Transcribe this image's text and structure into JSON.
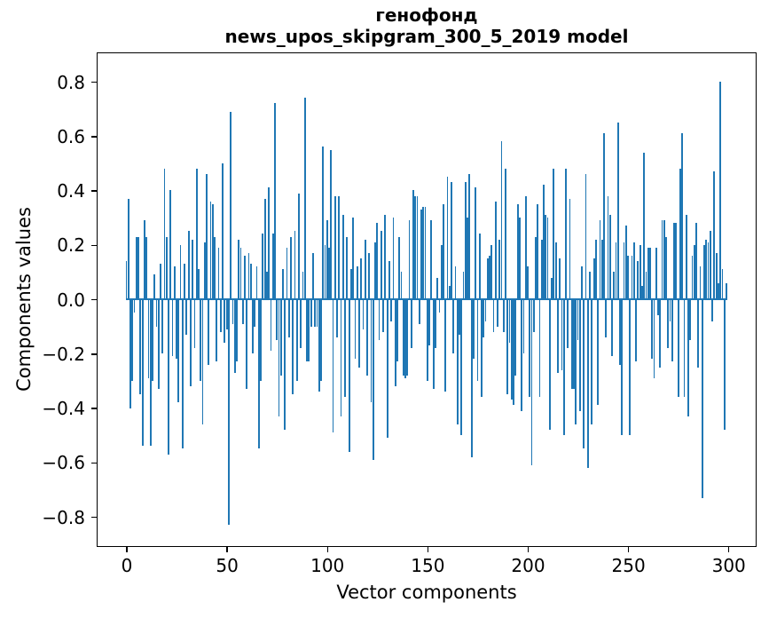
{
  "title": {
    "line1": "генофонд",
    "line2": "news_upos_skipgram_300_5_2019 model"
  },
  "axes": {
    "xlabel": "Vector components",
    "ylabel": "Components values"
  },
  "chart_data": {
    "type": "bar",
    "title": "генофонд\nnews_upos_skipgram_300_5_2019 model",
    "xlabel": "Vector components",
    "ylabel": "Components values",
    "bar_color": "#1f77b4",
    "grid": false,
    "legend": null,
    "n_components": 300,
    "x_ticks": [
      0,
      50,
      100,
      150,
      200,
      250,
      300
    ],
    "y_ticks": [
      0.8,
      0.6,
      0.4,
      0.2,
      0.0,
      -0.2,
      -0.4,
      -0.6,
      -0.8
    ],
    "xlim": [
      -14.6,
      313.4
    ],
    "ylim": [
      -0.906,
      0.906
    ],
    "values": [
      0.14,
      0.37,
      -0.4,
      -0.3,
      -0.05,
      0.23,
      0.23,
      -0.35,
      -0.54,
      0.29,
      0.23,
      -0.29,
      -0.54,
      -0.3,
      0.09,
      -0.1,
      -0.33,
      0.13,
      -0.2,
      0.48,
      0.23,
      -0.57,
      0.4,
      -0.21,
      0.12,
      -0.22,
      -0.38,
      0.2,
      -0.55,
      0.13,
      -0.13,
      0.25,
      -0.32,
      0.22,
      -0.18,
      0.48,
      0.11,
      -0.3,
      -0.46,
      0.21,
      0.46,
      -0.24,
      0.36,
      0.35,
      0.23,
      -0.23,
      0.19,
      -0.12,
      0.5,
      -0.16,
      -0.11,
      -0.83,
      0.69,
      -0.09,
      -0.27,
      -0.23,
      0.22,
      0.19,
      -0.09,
      0.16,
      -0.33,
      0.17,
      0.13,
      -0.2,
      -0.1,
      0.12,
      -0.55,
      -0.3,
      0.24,
      0.37,
      0.1,
      0.41,
      -0.19,
      0.24,
      0.72,
      -0.15,
      -0.43,
      -0.28,
      0.11,
      -0.48,
      0.19,
      -0.14,
      0.23,
      -0.35,
      0.25,
      -0.3,
      0.39,
      -0.18,
      0.1,
      0.74,
      -0.23,
      -0.23,
      -0.1,
      0.17,
      -0.1,
      -0.1,
      -0.34,
      -0.3,
      0.56,
      0.2,
      0.29,
      0.19,
      0.55,
      -0.49,
      0.38,
      -0.14,
      0.38,
      -0.43,
      0.31,
      -0.36,
      0.23,
      -0.56,
      0.11,
      0.3,
      -0.22,
      0.12,
      -0.25,
      0.15,
      -0.11,
      0.22,
      -0.28,
      0.17,
      -0.38,
      -0.59,
      0.21,
      0.28,
      -0.15,
      0.25,
      -0.12,
      0.31,
      -0.51,
      0.14,
      -0.08,
      0.3,
      -0.32,
      -0.23,
      0.23,
      0.1,
      -0.28,
      -0.29,
      -0.28,
      0.29,
      -0.18,
      0.4,
      0.38,
      0.38,
      -0.09,
      0.33,
      0.34,
      0.34,
      -0.3,
      -0.17,
      0.29,
      -0.33,
      -0.18,
      0.08,
      -0.05,
      0.2,
      0.35,
      -0.34,
      0.45,
      0.05,
      0.43,
      -0.2,
      0.12,
      -0.46,
      -0.13,
      -0.5,
      0.1,
      0.43,
      0.3,
      0.46,
      -0.58,
      -0.22,
      0.41,
      -0.3,
      0.24,
      -0.36,
      -0.14,
      -0.08,
      0.15,
      0.16,
      0.2,
      -0.12,
      0.36,
      -0.1,
      0.22,
      0.58,
      -0.12,
      0.48,
      -0.35,
      -0.16,
      -0.37,
      -0.39,
      -0.28,
      0.35,
      0.3,
      -0.41,
      -0.2,
      0.38,
      0.12,
      -0.36,
      -0.61,
      -0.12,
      0.23,
      0.35,
      -0.36,
      0.22,
      0.42,
      0.31,
      0.3,
      -0.48,
      0.08,
      0.48,
      0.21,
      -0.27,
      0.15,
      -0.26,
      -0.5,
      0.48,
      -0.18,
      0.37,
      -0.33,
      -0.33,
      -0.46,
      -0.15,
      -0.41,
      0.12,
      -0.55,
      0.46,
      -0.62,
      0.1,
      -0.46,
      0.15,
      0.22,
      -0.39,
      0.29,
      0.22,
      0.61,
      -0.14,
      0.38,
      0.31,
      -0.21,
      0.1,
      0.21,
      0.65,
      -0.24,
      -0.5,
      0.21,
      0.27,
      0.16,
      -0.5,
      0.16,
      0.21,
      -0.23,
      0.14,
      0.2,
      0.05,
      0.54,
      0.1,
      0.19,
      0.19,
      -0.22,
      -0.29,
      0.19,
      -0.06,
      -0.25,
      0.29,
      0.29,
      0.23,
      -0.18,
      -0.08,
      -0.23,
      0.28,
      0.28,
      -0.36,
      0.48,
      0.61,
      -0.36,
      0.31,
      -0.43,
      -0.15,
      0.16,
      0.2,
      0.28,
      -0.25,
      0.12,
      -0.73,
      0.2,
      0.22,
      0.21,
      0.25,
      -0.08,
      0.47,
      0.17,
      0.06,
      0.8,
      0.11,
      -0.48,
      0.06
    ]
  }
}
